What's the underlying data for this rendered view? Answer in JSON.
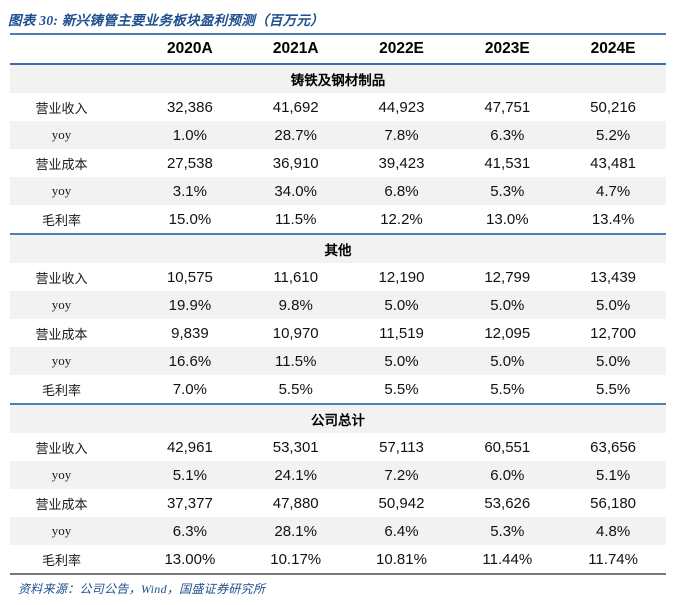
{
  "title": {
    "text": "图表 30: 新兴铸管主要业务板块盈利预测（百万元）"
  },
  "footer": {
    "text": "资料来源：公司公告，Wind，国盛证券研究所"
  },
  "colors": {
    "accent_blue_rule": "#4e7cb6",
    "header_rule": "#3d6cab",
    "footer_rule": "#7a7a7a",
    "title_text_blue": "#1e4f8f",
    "row_stripe": "#f2f2f2"
  },
  "table": {
    "columns": [
      "2020A",
      "2021A",
      "2022E",
      "2023E",
      "2024E"
    ],
    "sections": [
      {
        "name": "铸铁及钢材制品",
        "rows": [
          {
            "label": "营业收入",
            "values": [
              "32,386",
              "41,692",
              "44,923",
              "47,751",
              "50,216"
            ]
          },
          {
            "label": "yoy",
            "values": [
              "1.0%",
              "28.7%",
              "7.8%",
              "6.3%",
              "5.2%"
            ]
          },
          {
            "label": "营业成本",
            "values": [
              "27,538",
              "36,910",
              "39,423",
              "41,531",
              "43,481"
            ]
          },
          {
            "label": "yoy",
            "values": [
              "3.1%",
              "34.0%",
              "6.8%",
              "5.3%",
              "4.7%"
            ]
          },
          {
            "label": "毛利率",
            "values": [
              "15.0%",
              "11.5%",
              "12.2%",
              "13.0%",
              "13.4%"
            ]
          }
        ]
      },
      {
        "name": "其他",
        "rows": [
          {
            "label": "营业收入",
            "values": [
              "10,575",
              "11,610",
              "12,190",
              "12,799",
              "13,439"
            ]
          },
          {
            "label": "yoy",
            "values": [
              "19.9%",
              "9.8%",
              "5.0%",
              "5.0%",
              "5.0%"
            ]
          },
          {
            "label": "营业成本",
            "values": [
              "9,839",
              "10,970",
              "11,519",
              "12,095",
              "12,700"
            ]
          },
          {
            "label": "yoy",
            "values": [
              "16.6%",
              "11.5%",
              "5.0%",
              "5.0%",
              "5.0%"
            ]
          },
          {
            "label": "毛利率",
            "values": [
              "7.0%",
              "5.5%",
              "5.5%",
              "5.5%",
              "5.5%"
            ]
          }
        ]
      },
      {
        "name": "公司总计",
        "rows": [
          {
            "label": "营业收入",
            "values": [
              "42,961",
              "53,301",
              "57,113",
              "60,551",
              "63,656"
            ]
          },
          {
            "label": "yoy",
            "values": [
              "5.1%",
              "24.1%",
              "7.2%",
              "6.0%",
              "5.1%"
            ]
          },
          {
            "label": "营业成本",
            "values": [
              "37,377",
              "47,880",
              "50,942",
              "53,626",
              "56,180"
            ]
          },
          {
            "label": "yoy",
            "values": [
              "6.3%",
              "28.1%",
              "6.4%",
              "5.3%",
              "4.8%"
            ]
          },
          {
            "label": "毛利率",
            "values": [
              "13.00%",
              "10.17%",
              "10.81%",
              "11.44%",
              "11.74%"
            ]
          }
        ]
      }
    ]
  }
}
